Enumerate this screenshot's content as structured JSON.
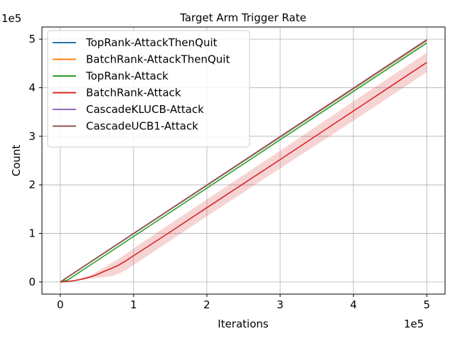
{
  "chart_data": {
    "type": "line",
    "title": "Target Arm Trigger Rate",
    "xlabel": "Iterations",
    "ylabel": "Count",
    "x_offset_label": "1e5",
    "y_offset_label": "1e5",
    "xlim": [
      -25000,
      525000
    ],
    "ylim": [
      -25000,
      525000
    ],
    "xticks": [
      0,
      100000,
      200000,
      300000,
      400000,
      500000
    ],
    "xtick_labels": [
      "0",
      "1",
      "2",
      "3",
      "4",
      "5"
    ],
    "yticks": [
      0,
      100000,
      200000,
      300000,
      400000,
      500000
    ],
    "ytick_labels": [
      "0",
      "1",
      "2",
      "3",
      "4",
      "5"
    ],
    "grid": true,
    "legend_position": "top-left",
    "series": [
      {
        "name": "TopRank-AttackThenQuit",
        "color": "#1f77b4",
        "x": [
          0,
          500000
        ],
        "y": [
          0,
          497000
        ]
      },
      {
        "name": "BatchRank-AttackThenQuit",
        "color": "#ff7f0e",
        "x": [
          0,
          500000
        ],
        "y": [
          0,
          497500
        ]
      },
      {
        "name": "TopRank-Attack",
        "color": "#2ca02c",
        "x": [
          0,
          10000,
          500000
        ],
        "y": [
          0,
          4000,
          492000
        ],
        "band_upper": [
          0,
          5000,
          494000
        ],
        "band_lower": [
          0,
          3000,
          490000
        ]
      },
      {
        "name": "BatchRank-Attack",
        "color": "#d62728",
        "x": [
          0,
          10000,
          20000,
          30000,
          40000,
          50000,
          60000,
          70000,
          80000,
          90000,
          100000,
          150000,
          200000,
          300000,
          400000,
          500000
        ],
        "y": [
          0,
          1000,
          3000,
          6000,
          10000,
          15000,
          22000,
          28000,
          35000,
          44000,
          54000,
          103000,
          153000,
          252000,
          352000,
          452000
        ],
        "band_upper": [
          0,
          1500,
          4000,
          8000,
          13000,
          21000,
          30000,
          39000,
          48000,
          58000,
          69000,
          120000,
          170000,
          270000,
          372000,
          472000
        ],
        "band_lower": [
          0,
          500,
          2000,
          4000,
          7000,
          8000,
          10000,
          12000,
          17000,
          25000,
          35000,
          85000,
          135000,
          234000,
          332000,
          432000
        ]
      },
      {
        "name": "CascadeKLUCB-Attack",
        "color": "#9467bd",
        "x": [
          0,
          500000
        ],
        "y": [
          0,
          499000
        ]
      },
      {
        "name": "CascadeUCB1-Attack",
        "color": "#8c564b",
        "x": [
          0,
          500000
        ],
        "y": [
          0,
          498500
        ]
      }
    ]
  }
}
